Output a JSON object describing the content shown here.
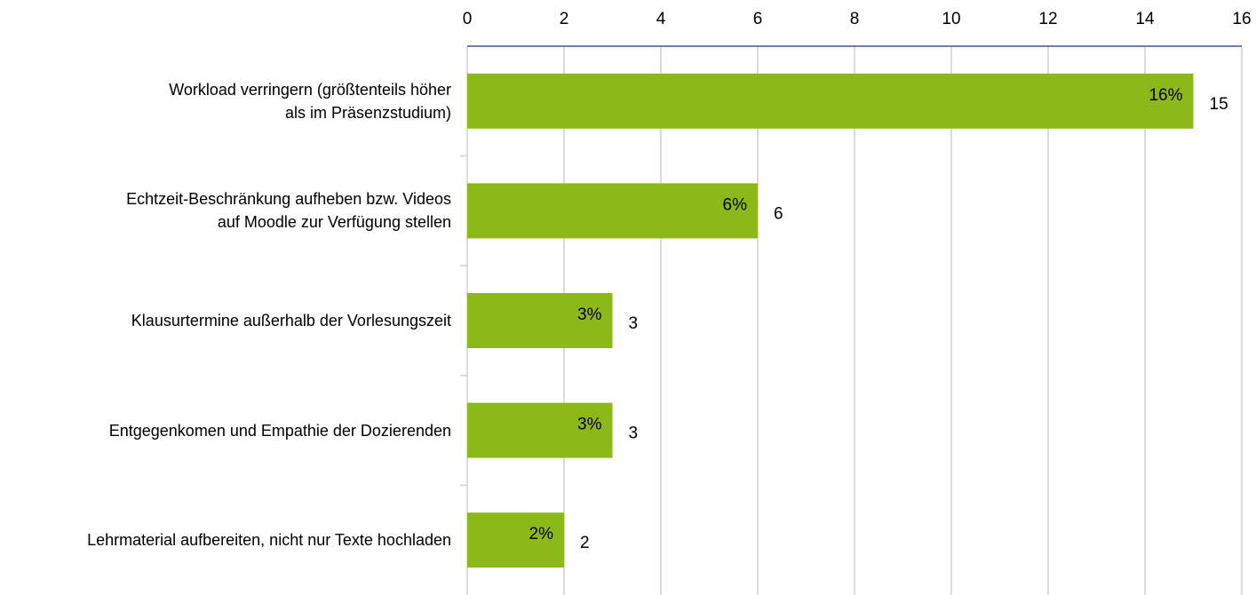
{
  "chart_data": {
    "type": "bar",
    "orientation": "horizontal",
    "categories": [
      "Workload verringern (größtenteils höher\nals im Präsenzstudium)",
      "Echtzeit-Beschränkung aufheben bzw. Videos\nauf Moodle zur Verfügung stellen",
      "Klausurtermine außerhalb der Vorlesungszeit",
      "Entgegenkomen und Empathie der Dozierenden",
      "Lehrmaterial aufbereiten, nicht nur Texte hochladen"
    ],
    "values": [
      15,
      6,
      3,
      3,
      2
    ],
    "share_labels": [
      "16%",
      "6%",
      "3%",
      "3%",
      "2%"
    ],
    "color": "#8cb919",
    "xlim": [
      0,
      16
    ],
    "xticks": [
      0,
      2,
      4,
      6,
      8,
      10,
      12,
      14,
      16
    ],
    "grid": true
  }
}
